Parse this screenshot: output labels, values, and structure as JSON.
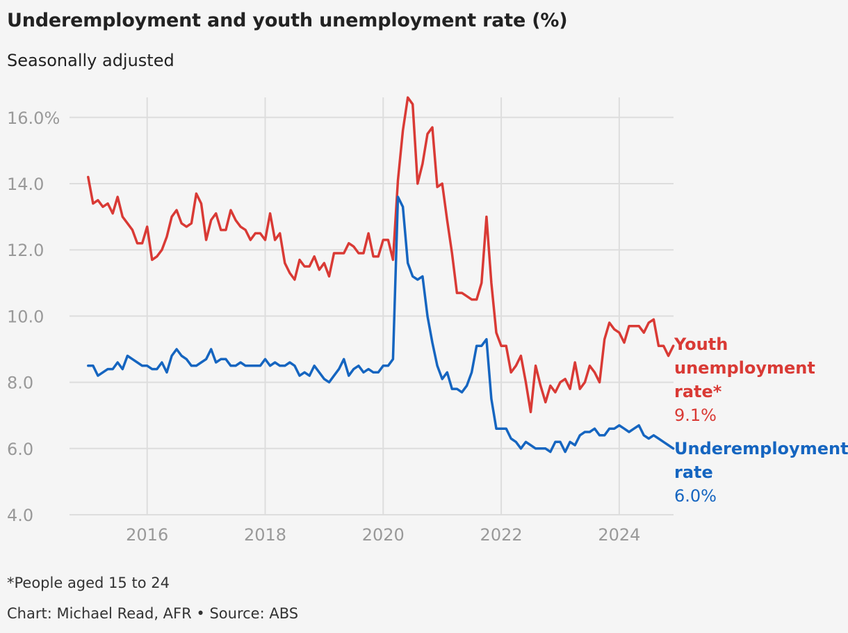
{
  "title": "Underemployment and youth unemployment rate (%)",
  "subtitle": "Seasonally adjusted",
  "footnote": "*People aged 15 to 24",
  "source": "Chart: Michael Read, AFR • Source: ABS",
  "colors": {
    "youth": "#d93a35",
    "under": "#1565c0",
    "grid": "#dddddd",
    "tick": "#999999",
    "background": "#f5f5f5"
  },
  "chart_data": {
    "type": "line",
    "xlabel": "",
    "ylabel": "",
    "xlim": [
      2014.92,
      2024.92
    ],
    "ylim": [
      4.0,
      16.6
    ],
    "grid": true,
    "y_ticks": [
      {
        "value": 4,
        "label": "4.0"
      },
      {
        "value": 6,
        "label": "6.0"
      },
      {
        "value": 8,
        "label": "8.0"
      },
      {
        "value": 10,
        "label": "10.0"
      },
      {
        "value": 12,
        "label": "12.0"
      },
      {
        "value": 14,
        "label": "14.0"
      },
      {
        "value": 16,
        "label": "16.0%"
      }
    ],
    "x_ticks": [
      {
        "value": 2016,
        "label": "2016"
      },
      {
        "value": 2018,
        "label": "2018"
      },
      {
        "value": 2020,
        "label": "2020"
      },
      {
        "value": 2022,
        "label": "2022"
      },
      {
        "value": 2024,
        "label": "2024"
      }
    ],
    "x_start": "2015-01",
    "series": [
      {
        "key": "youth",
        "name_lines": [
          "Youth",
          "unemployment",
          "rate*"
        ],
        "end_value_label": "9.1%",
        "values": [
          14.2,
          13.4,
          13.5,
          13.3,
          13.4,
          13.1,
          13.6,
          13.0,
          12.8,
          12.6,
          12.2,
          12.2,
          12.7,
          11.7,
          11.8,
          12.0,
          12.4,
          13.0,
          13.2,
          12.8,
          12.7,
          12.8,
          13.7,
          13.4,
          12.3,
          12.9,
          13.1,
          12.6,
          12.6,
          13.2,
          12.9,
          12.7,
          12.6,
          12.3,
          12.5,
          12.5,
          12.3,
          13.1,
          12.3,
          12.5,
          11.6,
          11.3,
          11.1,
          11.7,
          11.5,
          11.5,
          11.8,
          11.4,
          11.6,
          11.2,
          11.9,
          11.9,
          11.9,
          12.2,
          12.1,
          11.9,
          11.9,
          12.5,
          11.8,
          11.8,
          12.3,
          12.3,
          11.7,
          14.1,
          15.6,
          16.6,
          16.4,
          14.0,
          14.6,
          15.5,
          15.7,
          13.9,
          14.0,
          12.9,
          11.9,
          10.7,
          10.7,
          10.6,
          10.5,
          10.5,
          11.0,
          13.0,
          11.0,
          9.5,
          9.1,
          9.1,
          8.3,
          8.5,
          8.8,
          8.0,
          7.1,
          8.5,
          7.9,
          7.4,
          7.9,
          7.7,
          8.0,
          8.1,
          7.8,
          8.6,
          7.8,
          8.0,
          8.5,
          8.3,
          8.0,
          9.3,
          9.8,
          9.6,
          9.5,
          9.2,
          9.7,
          9.7,
          9.7,
          9.5,
          9.8,
          9.9,
          9.1,
          9.1,
          8.8,
          9.1
        ]
      },
      {
        "key": "under",
        "name_lines": [
          "Underemployment",
          "rate"
        ],
        "end_value_label": "6.0%",
        "values": [
          8.5,
          8.5,
          8.2,
          8.3,
          8.4,
          8.4,
          8.6,
          8.4,
          8.8,
          8.7,
          8.6,
          8.5,
          8.5,
          8.4,
          8.4,
          8.6,
          8.3,
          8.8,
          9.0,
          8.8,
          8.7,
          8.5,
          8.5,
          8.6,
          8.7,
          9.0,
          8.6,
          8.7,
          8.7,
          8.5,
          8.5,
          8.6,
          8.5,
          8.5,
          8.5,
          8.5,
          8.7,
          8.5,
          8.6,
          8.5,
          8.5,
          8.6,
          8.5,
          8.2,
          8.3,
          8.2,
          8.5,
          8.3,
          8.1,
          8.0,
          8.2,
          8.4,
          8.7,
          8.2,
          8.4,
          8.5,
          8.3,
          8.4,
          8.3,
          8.3,
          8.5,
          8.5,
          8.7,
          13.6,
          13.3,
          11.6,
          11.2,
          11.1,
          11.2,
          10.0,
          9.2,
          8.5,
          8.1,
          8.3,
          7.8,
          7.8,
          7.7,
          7.9,
          8.3,
          9.1,
          9.1,
          9.3,
          7.5,
          6.6,
          6.6,
          6.6,
          6.3,
          6.2,
          6.0,
          6.2,
          6.1,
          6.0,
          6.0,
          6.0,
          5.9,
          6.2,
          6.2,
          5.9,
          6.2,
          6.1,
          6.4,
          6.5,
          6.5,
          6.6,
          6.4,
          6.4,
          6.6,
          6.6,
          6.7,
          6.6,
          6.5,
          6.6,
          6.7,
          6.4,
          6.3,
          6.4,
          6.3,
          6.2,
          6.1,
          6.0
        ]
      }
    ]
  }
}
